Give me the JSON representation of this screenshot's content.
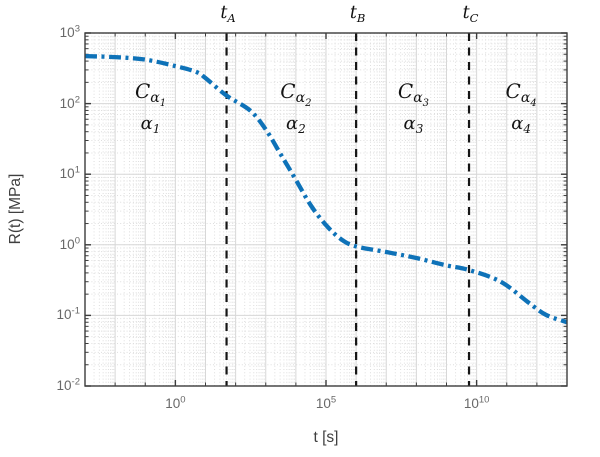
{
  "figure": {
    "background": "#ffffff",
    "axis_color": "#3c3c3c",
    "tick_label_color": "#686868",
    "axis_title_color": "#3f3f3f",
    "grid_major_color": "#d7d7d7",
    "grid_minor_color": "#dedede",
    "annotation_color": "#141414"
  },
  "chart_data": {
    "type": "line",
    "title": "",
    "xlabel": "t [s]",
    "ylabel": "R(t) [MPa]",
    "xscale": "log",
    "yscale": "log",
    "xlim": [
      0.001,
      10000000000000.0
    ],
    "ylim": [
      0.01,
      1000.0
    ],
    "grid": true,
    "minor_grid": true,
    "legend": "none",
    "x_tick_exponents": [
      0,
      5,
      10
    ],
    "y_tick_exponents": [
      3,
      2,
      1,
      0,
      -1,
      -2
    ],
    "series": [
      {
        "name": "relaxation-modulus-curve",
        "color": "#0e72b8",
        "line_style": "dash-dot",
        "line_width": 4.3,
        "t": [
          0.001,
          0.01,
          0.1,
          1,
          5,
          10,
          50,
          300,
          1000,
          3160,
          10000,
          31600,
          100000,
          316000,
          1000000,
          10000000,
          100000000,
          1000000000,
          5600000000,
          63000000000,
          500000000000,
          2000000000000,
          10000000000000
        ],
        "R": [
          470,
          455,
          420,
          340,
          280,
          230,
          130,
          80,
          43,
          19,
          8.3,
          3.6,
          1.9,
          1.2,
          0.95,
          0.79,
          0.65,
          0.51,
          0.44,
          0.3,
          0.155,
          0.102,
          0.08
        ]
      }
    ],
    "vlines": [
      {
        "sym": "t",
        "sub": "A",
        "t": 50,
        "color": "#151515",
        "style": "dashed"
      },
      {
        "sym": "t",
        "sub": "B",
        "t": 1000000,
        "color": "#151515",
        "style": "dashed"
      },
      {
        "sym": "t",
        "sub": "C",
        "t": 5600000000,
        "color": "#151515",
        "style": "dashed"
      }
    ],
    "regions": [
      {
        "sym": "C",
        "sub": "α",
        "subsub": "1",
        "alpha": "α",
        "alphasub": "1",
        "center_t": 0.15
      },
      {
        "sym": "C",
        "sub": "α",
        "subsub": "2",
        "alpha": "α",
        "alphasub": "2",
        "center_t": 10000
      },
      {
        "sym": "C",
        "sub": "α",
        "subsub": "3",
        "alpha": "α",
        "alphasub": "3",
        "center_t": 80000000
      },
      {
        "sym": "C",
        "sub": "α",
        "subsub": "4",
        "alpha": "α",
        "alphasub": "4",
        "center_t": 300000000000
      }
    ]
  }
}
